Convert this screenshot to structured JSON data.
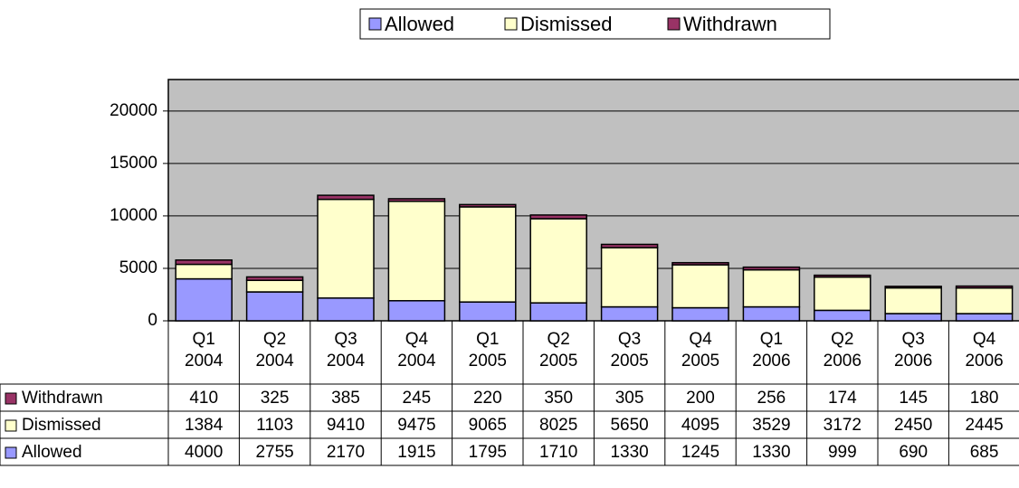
{
  "chart_data": {
    "type": "bar",
    "stacked": true,
    "categories": [
      "Q1 2004",
      "Q2 2004",
      "Q3 2004",
      "Q4 2004",
      "Q1 2005",
      "Q2 2005",
      "Q3 2005",
      "Q4 2005",
      "Q1 2006",
      "Q2 2006",
      "Q3 2006",
      "Q4 2006"
    ],
    "series": [
      {
        "name": "Allowed",
        "color": "#9999ff",
        "values": [
          4000,
          2755,
          2170,
          1915,
          1795,
          1710,
          1330,
          1245,
          1330,
          999,
          690,
          685
        ]
      },
      {
        "name": "Dismissed",
        "color": "#ffffcc",
        "values": [
          1384,
          1103,
          9410,
          9475,
          9065,
          8025,
          5650,
          4095,
          3529,
          3172,
          2450,
          2445
        ]
      },
      {
        "name": "Withdrawn",
        "color": "#993366",
        "values": [
          410,
          325,
          385,
          245,
          220,
          350,
          305,
          200,
          256,
          174,
          145,
          180
        ]
      }
    ],
    "ylim": [
      0,
      23000
    ],
    "yticks": [
      0,
      5000,
      10000,
      15000,
      20000
    ],
    "grid": true,
    "legend": "top",
    "data_table": true
  }
}
